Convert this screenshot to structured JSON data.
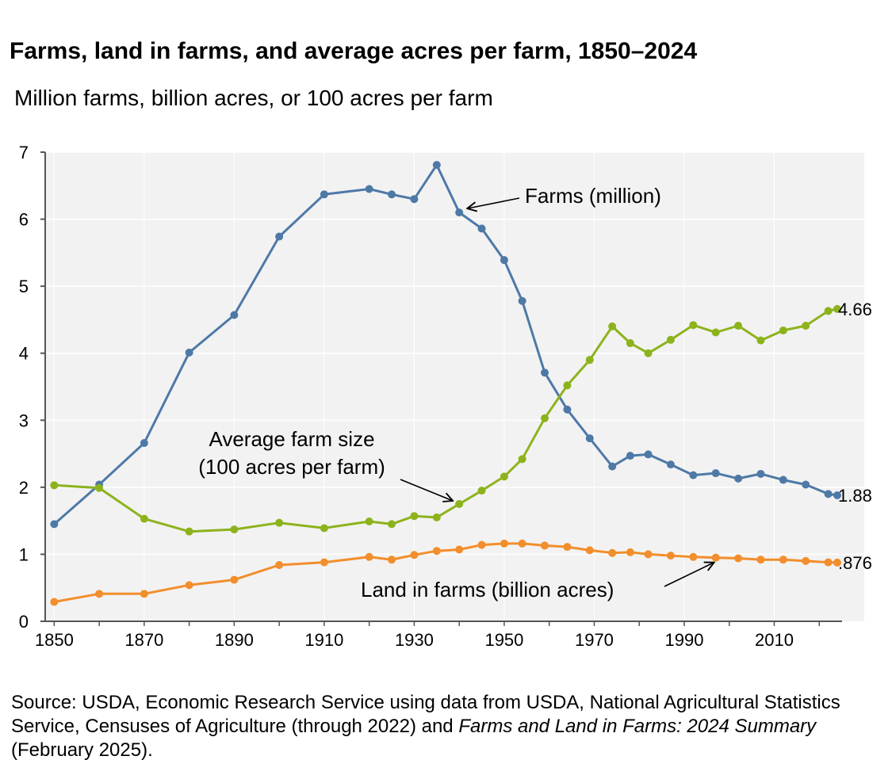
{
  "title": "Farms, land in farms, and average acres per farm, 1850–2024",
  "subtitle": "Million farms, billion acres, or 100 acres per farm",
  "source": {
    "part1": "Source: USDA, Economic Research Service using data from USDA, National Agricultural Statistics Service, Censuses of Agriculture (through 2022) and ",
    "italic": "Farms and Land in Farms: 2024 Summary",
    "part2": " (February 2025)."
  },
  "colors": {
    "farms": "#4E79A7",
    "avg": "#8DB31C",
    "land": "#F28E2B",
    "plot_bg": "#F2F2F2",
    "grid": "#FFFFFF",
    "axis": "#555555"
  },
  "chart_data": {
    "type": "line",
    "xlim": [
      1848,
      2030
    ],
    "ylim": [
      0,
      7
    ],
    "x_ticks": [
      1850,
      1870,
      1890,
      1910,
      1930,
      1950,
      1970,
      1990,
      2010
    ],
    "y_ticks": [
      0,
      1,
      2,
      3,
      4,
      5,
      6,
      7
    ],
    "series": [
      {
        "name": "Farms (million)",
        "label": "Farms (million)",
        "color_key": "farms",
        "end_label": "1.88",
        "points": [
          [
            1850,
            1.45
          ],
          [
            1860,
            2.04
          ],
          [
            1870,
            2.66
          ],
          [
            1880,
            4.01
          ],
          [
            1890,
            4.57
          ],
          [
            1900,
            5.74
          ],
          [
            1910,
            6.37
          ],
          [
            1920,
            6.45
          ],
          [
            1925,
            6.37
          ],
          [
            1930,
            6.3
          ],
          [
            1935,
            6.81
          ],
          [
            1940,
            6.1
          ],
          [
            1945,
            5.86
          ],
          [
            1950,
            5.39
          ],
          [
            1954,
            4.78
          ],
          [
            1959,
            3.71
          ],
          [
            1964,
            3.16
          ],
          [
            1969,
            2.73
          ],
          [
            1974,
            2.31
          ],
          [
            1978,
            2.47
          ],
          [
            1982,
            2.49
          ],
          [
            1987,
            2.34
          ],
          [
            1992,
            2.18
          ],
          [
            1997,
            2.21
          ],
          [
            2002,
            2.13
          ],
          [
            2007,
            2.2
          ],
          [
            2012,
            2.11
          ],
          [
            2017,
            2.04
          ],
          [
            2022,
            1.9
          ],
          [
            2024,
            1.88
          ]
        ]
      },
      {
        "name": "Average farm size (100 acres per farm)",
        "label_line1": "Average farm size",
        "label_line2": "(100 acres per farm)",
        "color_key": "avg",
        "end_label": "4.66",
        "points": [
          [
            1850,
            2.03
          ],
          [
            1860,
            1.99
          ],
          [
            1870,
            1.53
          ],
          [
            1880,
            1.34
          ],
          [
            1890,
            1.37
          ],
          [
            1900,
            1.47
          ],
          [
            1910,
            1.39
          ],
          [
            1920,
            1.49
          ],
          [
            1925,
            1.45
          ],
          [
            1930,
            1.57
          ],
          [
            1935,
            1.55
          ],
          [
            1940,
            1.75
          ],
          [
            1945,
            1.95
          ],
          [
            1950,
            2.16
          ],
          [
            1954,
            2.42
          ],
          [
            1959,
            3.03
          ],
          [
            1964,
            3.52
          ],
          [
            1969,
            3.9
          ],
          [
            1974,
            4.4
          ],
          [
            1978,
            4.15
          ],
          [
            1982,
            4.0
          ],
          [
            1987,
            4.2
          ],
          [
            1992,
            4.42
          ],
          [
            1997,
            4.31
          ],
          [
            2002,
            4.41
          ],
          [
            2007,
            4.19
          ],
          [
            2012,
            4.34
          ],
          [
            2017,
            4.41
          ],
          [
            2022,
            4.63
          ],
          [
            2024,
            4.66
          ]
        ]
      },
      {
        "name": "Land in farms (billion acres)",
        "label": "Land in farms (billion acres)",
        "color_key": "land",
        "end_label": ".876",
        "points": [
          [
            1850,
            0.29
          ],
          [
            1860,
            0.41
          ],
          [
            1870,
            0.41
          ],
          [
            1880,
            0.54
          ],
          [
            1890,
            0.62
          ],
          [
            1900,
            0.84
          ],
          [
            1910,
            0.88
          ],
          [
            1920,
            0.96
          ],
          [
            1925,
            0.92
          ],
          [
            1930,
            0.99
          ],
          [
            1935,
            1.05
          ],
          [
            1940,
            1.07
          ],
          [
            1945,
            1.14
          ],
          [
            1950,
            1.16
          ],
          [
            1954,
            1.16
          ],
          [
            1959,
            1.13
          ],
          [
            1964,
            1.11
          ],
          [
            1969,
            1.06
          ],
          [
            1974,
            1.02
          ],
          [
            1978,
            1.03
          ],
          [
            1982,
            1.0
          ],
          [
            1987,
            0.98
          ],
          [
            1992,
            0.96
          ],
          [
            1997,
            0.95
          ],
          [
            2002,
            0.94
          ],
          [
            2007,
            0.92
          ],
          [
            2012,
            0.92
          ],
          [
            2017,
            0.9
          ],
          [
            2022,
            0.88
          ],
          [
            2024,
            0.876
          ]
        ]
      }
    ]
  }
}
